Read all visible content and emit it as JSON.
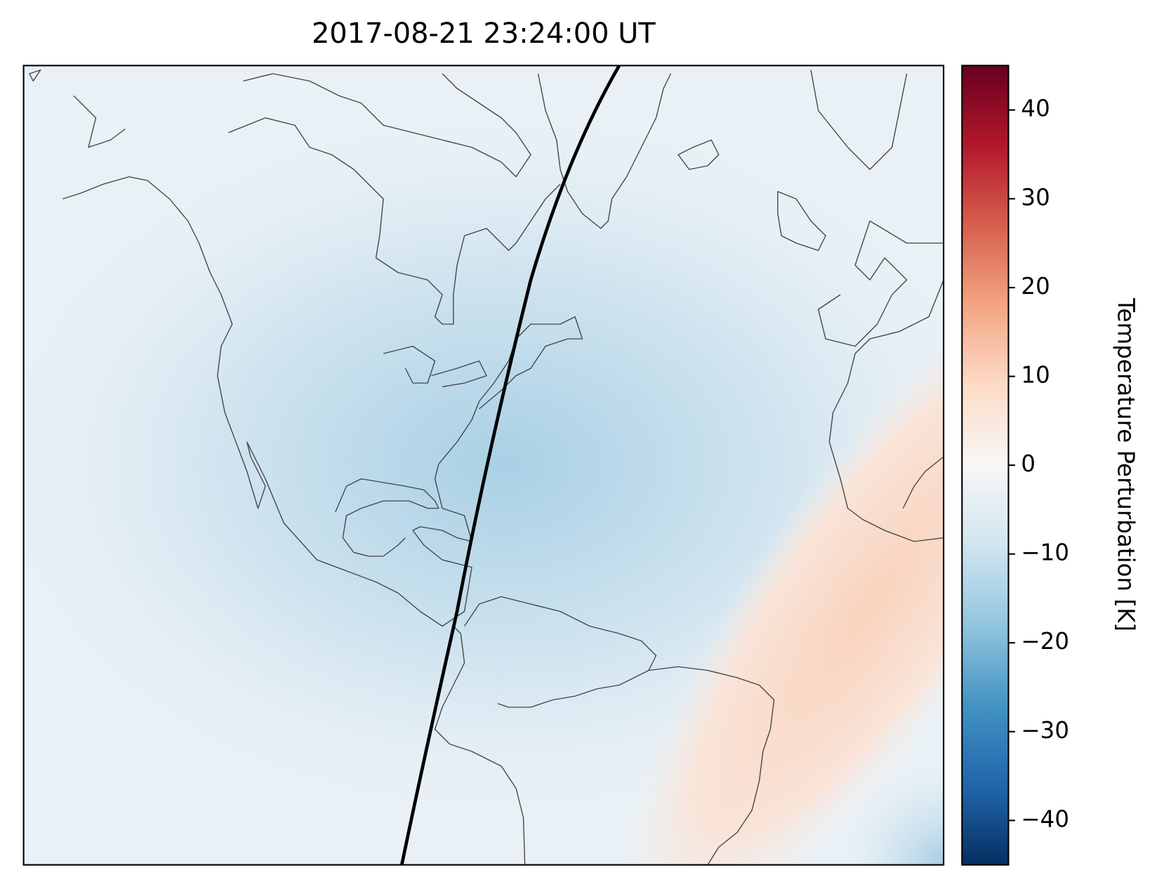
{
  "chart_data": {
    "type": "map",
    "title": "2017-08-21 23:24:00 UT",
    "colorbar": {
      "label": "Temperature Perturbation [K]",
      "lim": [
        -45,
        45
      ],
      "ticks": [
        {
          "value": -40,
          "label": "−40"
        },
        {
          "value": -30,
          "label": "−30"
        },
        {
          "value": -20,
          "label": "−20"
        },
        {
          "value": -10,
          "label": "−10"
        },
        0,
        10,
        20,
        30,
        40
      ],
      "colors": [
        "#053061",
        "#2166ac",
        "#4393c3",
        "#92c5de",
        "#d1e5f0",
        "#f7f7f7",
        "#fddbc7",
        "#f4a582",
        "#d6604d",
        "#b2182b",
        "#67001f"
      ]
    }
  }
}
